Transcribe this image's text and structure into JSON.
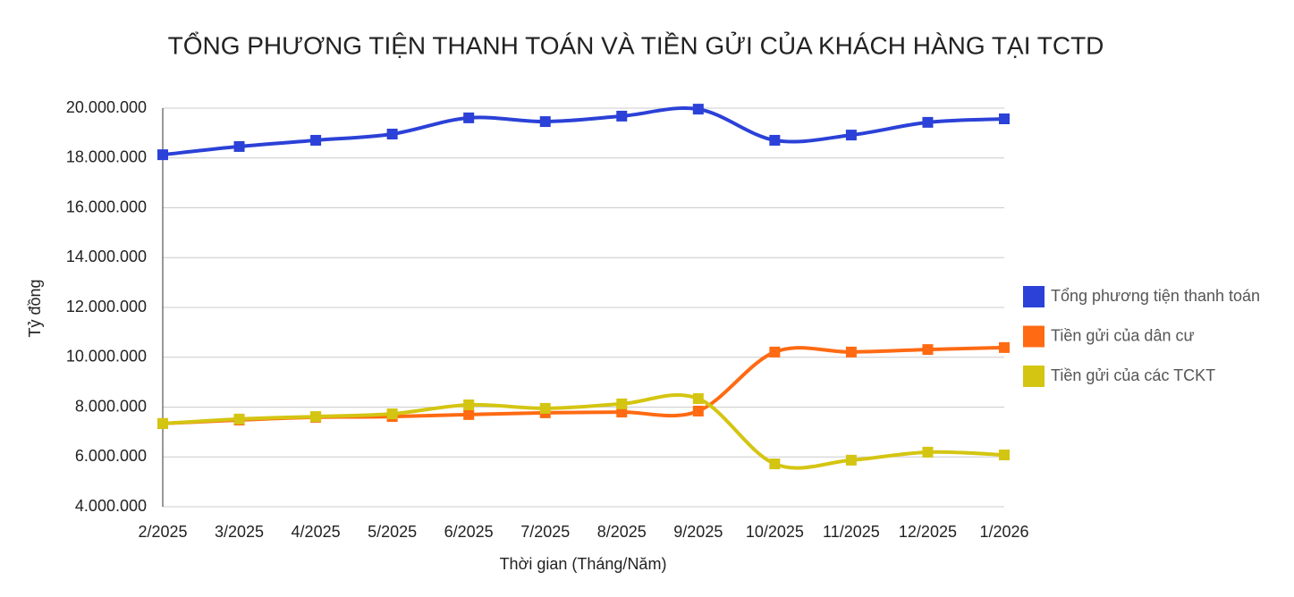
{
  "chart_data": {
    "type": "line",
    "title": "TỔNG PHƯƠNG TIỆN THANH TOÁN VÀ TIỀN GỬI CỦA KHÁCH HÀNG TẠI TCTD",
    "x_label": "Thời gian (Tháng/Năm)",
    "y_label": "Tỷ đồng",
    "categories": [
      "2/2025",
      "3/2025",
      "4/2025",
      "5/2025",
      "6/2025",
      "7/2025",
      "8/2025",
      "9/2025",
      "10/2025",
      "11/2025",
      "12/2025",
      "1/2026"
    ],
    "series": [
      {
        "name": "Tổng phương tiện thanh toán",
        "color": "#2b41d7",
        "values": [
          18130000,
          18460000,
          18710000,
          18960000,
          19610000,
          19460000,
          19680000,
          19960000,
          18710000,
          18920000,
          19430000,
          19570000
        ]
      },
      {
        "name": "Tiền gửi của dân cư",
        "color": "#ff6a13",
        "values": [
          7340000,
          7480000,
          7590000,
          7620000,
          7700000,
          7770000,
          7800000,
          7840000,
          10210000,
          10210000,
          10310000,
          10390000
        ]
      },
      {
        "name": "Tiền gửi của các TCKT",
        "color": "#d4c512",
        "values": [
          7340000,
          7520000,
          7620000,
          7730000,
          8090000,
          7950000,
          8130000,
          8340000,
          5720000,
          5870000,
          6190000,
          6080000
        ]
      }
    ],
    "ylim": [
      4000000,
      20000000
    ],
    "yticks": [
      {
        "value": 4000000,
        "label": "4.000.000"
      },
      {
        "value": 6000000,
        "label": "6.000.000"
      },
      {
        "value": 8000000,
        "label": "8.000.000"
      },
      {
        "value": 10000000,
        "label": "10.000.000"
      },
      {
        "value": 12000000,
        "label": "12.000.000"
      },
      {
        "value": 14000000,
        "label": "14.000.000"
      },
      {
        "value": 16000000,
        "label": "16.000.000"
      },
      {
        "value": 18000000,
        "label": "18.000.000"
      },
      {
        "value": 20000000,
        "label": "20.000.000"
      }
    ],
    "grid": true,
    "smooth": true,
    "legend": "right"
  }
}
